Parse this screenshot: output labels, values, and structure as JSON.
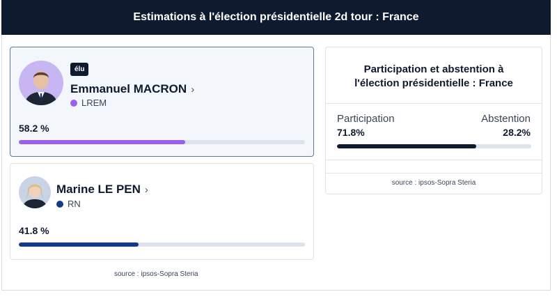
{
  "header": {
    "title": "Estimations à l'élection présidentielle 2d tour : France"
  },
  "candidates": [
    {
      "name": "Emmanuel MACRON",
      "party": "LREM",
      "party_color": "#9a5ef0",
      "badge": "élu",
      "percentage_label": "58.2 %",
      "percentage": 58.2,
      "bar_color": "#9a5ef0",
      "avatar_icon": "portrait-macron"
    },
    {
      "name": "Marine LE PEN",
      "party": "RN",
      "party_color": "#163a8a",
      "percentage_label": "41.8 %",
      "percentage": 41.8,
      "bar_color": "#163a8a",
      "avatar_icon": "portrait-le-pen"
    }
  ],
  "candidates_source": "source : ipsos-Sopra Steria",
  "participation_panel": {
    "title_line1": "Participation et abstention à",
    "title_line2": "l'élection présidentielle : France",
    "participation_label": "Participation",
    "abstention_label": "Abstention",
    "participation_value": "71.8%",
    "abstention_value": "28.2%",
    "participation_fraction": 0.718,
    "bar_color": "#0e1a2e",
    "source": "source : ipsos-Sopra Steria"
  }
}
